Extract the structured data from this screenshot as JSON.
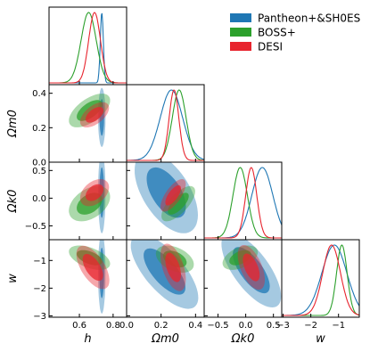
{
  "chart_data": {
    "type": "corner",
    "parameters": [
      {
        "key": "h",
        "label": "h",
        "lim": [
          0.42,
          0.88
        ],
        "ticks": [
          0.6,
          0.8
        ],
        "tick_labels": [
          "0.6",
          "0.8"
        ]
      },
      {
        "key": "Om",
        "label": "Ωm0",
        "lim": [
          0.0,
          0.45
        ],
        "ticks": [
          0.0,
          0.2,
          0.4
        ],
        "tick_labels": [
          "0.0",
          "0.2",
          "0.4"
        ]
      },
      {
        "key": "Ok",
        "label": "Ωk0",
        "lim": [
          -0.75,
          0.65
        ],
        "ticks": [
          -0.5,
          0.0,
          0.5
        ],
        "tick_labels": [
          "−0.5",
          "0.0",
          "0.5"
        ]
      },
      {
        "key": "w",
        "label": "w",
        "lim": [
          -3.05,
          -0.25
        ],
        "ticks": [
          -3,
          -2,
          -1
        ],
        "tick_labels": [
          "−3",
          "−2",
          "−1"
        ]
      }
    ],
    "legend": {
      "position": "top-right",
      "entries": [
        "Pantheon+&SH0ES",
        "BOSS+",
        "DESI"
      ]
    },
    "series": [
      {
        "name": "Pantheon+&SH0ES",
        "color": "#1f77b4",
        "marginals": {
          "h": {
            "mean": 0.733,
            "sd": 0.009
          },
          "Om": {
            "mean": 0.26,
            "sd": 0.065
          },
          "Ok": {
            "mean": 0.3,
            "sd": 0.19
          },
          "w": {
            "mean": -1.15,
            "sd": 0.45
          }
        },
        "contours": [
          {
            "x": "h",
            "y": "Om",
            "mu": [
              0.733,
              0.26
            ],
            "sd": [
              0.009,
              0.07
            ],
            "rho": 0.0
          },
          {
            "x": "h",
            "y": "Ok",
            "mu": [
              0.733,
              0.1
            ],
            "sd": [
              0.009,
              0.3
            ],
            "rho": 0.0
          },
          {
            "x": "h",
            "y": "w",
            "mu": [
              0.733,
              -1.45
            ],
            "sd": [
              0.009,
              0.6
            ],
            "rho": 0.0
          },
          {
            "x": "Om",
            "y": "Ok",
            "mu": [
              0.23,
              0.1
            ],
            "sd": [
              0.075,
              0.3
            ],
            "rho": -0.55
          },
          {
            "x": "Om",
            "y": "w",
            "mu": [
              0.22,
              -1.4
            ],
            "sd": [
              0.08,
              0.55
            ],
            "rho": -0.7
          },
          {
            "x": "Ok",
            "y": "w",
            "mu": [
              0.1,
              -1.35
            ],
            "sd": [
              0.22,
              0.55
            ],
            "rho": -0.7
          }
        ]
      },
      {
        "name": "BOSS+",
        "color": "#2ca02c",
        "marginals": {
          "h": {
            "mean": 0.655,
            "sd": 0.045
          },
          "Om": {
            "mean": 0.305,
            "sd": 0.04
          },
          "Ok": {
            "mean": -0.1,
            "sd": 0.13
          },
          "w": {
            "mean": -0.88,
            "sd": 0.19
          }
        },
        "contours": [
          {
            "x": "h",
            "y": "Om",
            "mu": [
              0.66,
              0.3
            ],
            "sd": [
              0.05,
              0.04
            ],
            "rho": 0.6
          },
          {
            "x": "h",
            "y": "Ok",
            "mu": [
              0.66,
              -0.1
            ],
            "sd": [
              0.05,
              0.13
            ],
            "rho": 0.4
          },
          {
            "x": "h",
            "y": "w",
            "mu": [
              0.66,
              -0.9
            ],
            "sd": [
              0.05,
              0.18
            ],
            "rho": -0.5
          },
          {
            "x": "Om",
            "y": "Ok",
            "mu": [
              0.3,
              -0.1
            ],
            "sd": [
              0.04,
              0.13
            ],
            "rho": 0.7
          },
          {
            "x": "Om",
            "y": "w",
            "mu": [
              0.28,
              -0.95
            ],
            "sd": [
              0.045,
              0.2
            ],
            "rho": -0.4
          },
          {
            "x": "Ok",
            "y": "w",
            "mu": [
              -0.1,
              -0.9
            ],
            "sd": [
              0.13,
              0.18
            ],
            "rho": 0.45
          }
        ]
      },
      {
        "name": "DESI",
        "color": "#e8242e",
        "marginals": {
          "h": {
            "mean": 0.69,
            "sd": 0.035
          },
          "Om": {
            "mean": 0.275,
            "sd": 0.028
          },
          "Ok": {
            "mean": 0.1,
            "sd": 0.1
          },
          "w": {
            "mean": -1.25,
            "sd": 0.32
          }
        },
        "contours": [
          {
            "x": "h",
            "y": "Om",
            "mu": [
              0.69,
              0.275
            ],
            "sd": [
              0.035,
              0.03
            ],
            "rho": 0.55
          },
          {
            "x": "h",
            "y": "Ok",
            "mu": [
              0.69,
              0.1
            ],
            "sd": [
              0.035,
              0.1
            ],
            "rho": 0.4
          },
          {
            "x": "h",
            "y": "w",
            "mu": [
              0.68,
              -1.25
            ],
            "sd": [
              0.04,
              0.32
            ],
            "rho": -0.6
          },
          {
            "x": "Om",
            "y": "Ok",
            "mu": [
              0.27,
              0.05
            ],
            "sd": [
              0.03,
              0.12
            ],
            "rho": 0.7
          },
          {
            "x": "Om",
            "y": "w",
            "mu": [
              0.27,
              -1.25
            ],
            "sd": [
              0.03,
              0.35
            ],
            "rho": -0.5
          },
          {
            "x": "Ok",
            "y": "w",
            "mu": [
              0.1,
              -1.25
            ],
            "sd": [
              0.1,
              0.33
            ],
            "rho": -0.55
          }
        ]
      }
    ]
  }
}
